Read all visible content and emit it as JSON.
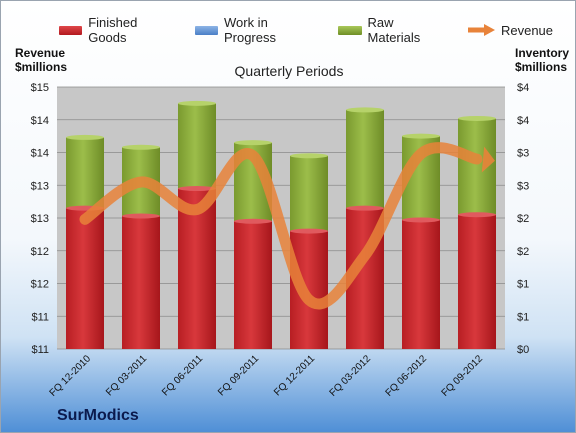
{
  "chart_data": {
    "type": "bar",
    "subtitle": "Quarterly Periods",
    "ylabel_left": [
      "Revenue",
      "$millions"
    ],
    "ylabel_right": [
      "Inventory",
      "$millions"
    ],
    "left_ticks": [
      "$11",
      "$11",
      "$12",
      "$12",
      "$13",
      "$13",
      "$14",
      "$14",
      "$15"
    ],
    "right_ticks": [
      "$0",
      "$1",
      "$1",
      "$2",
      "$2",
      "$3",
      "$3",
      "$4",
      "$4"
    ],
    "ylim_left": [
      11,
      15
    ],
    "ylim_right": [
      0,
      4
    ],
    "categories": [
      "FQ 12-2010",
      "FQ 03-2011",
      "FQ 06-2011",
      "FQ 09-2011",
      "FQ 12-2011",
      "FQ 03-2012",
      "FQ 06-2012",
      "FQ 09-2012"
    ],
    "series": [
      {
        "name": "Finished Goods",
        "axis": "right",
        "stacked": true,
        "color": "#c0282d",
        "values": [
          2.15,
          2.03,
          2.45,
          1.95,
          1.8,
          2.15,
          1.97,
          2.05
        ]
      },
      {
        "name": "Work in Progress",
        "axis": "right",
        "stacked": true,
        "color": "#5b8fd4",
        "values": [
          0,
          0,
          0,
          0,
          0,
          0,
          0,
          0
        ]
      },
      {
        "name": "Raw Materials",
        "axis": "right",
        "stacked": true,
        "color": "#8eb03c",
        "values": [
          1.08,
          1.05,
          1.3,
          1.2,
          1.15,
          1.5,
          1.28,
          1.47
        ]
      },
      {
        "name": "Revenue",
        "axis": "left",
        "type": "line",
        "color": "#e8833a",
        "values": [
          12.98,
          13.55,
          13.13,
          13.95,
          11.75,
          12.43,
          13.98,
          13.9
        ]
      }
    ],
    "grid": true,
    "legend": "top"
  },
  "brand": "SurModics"
}
